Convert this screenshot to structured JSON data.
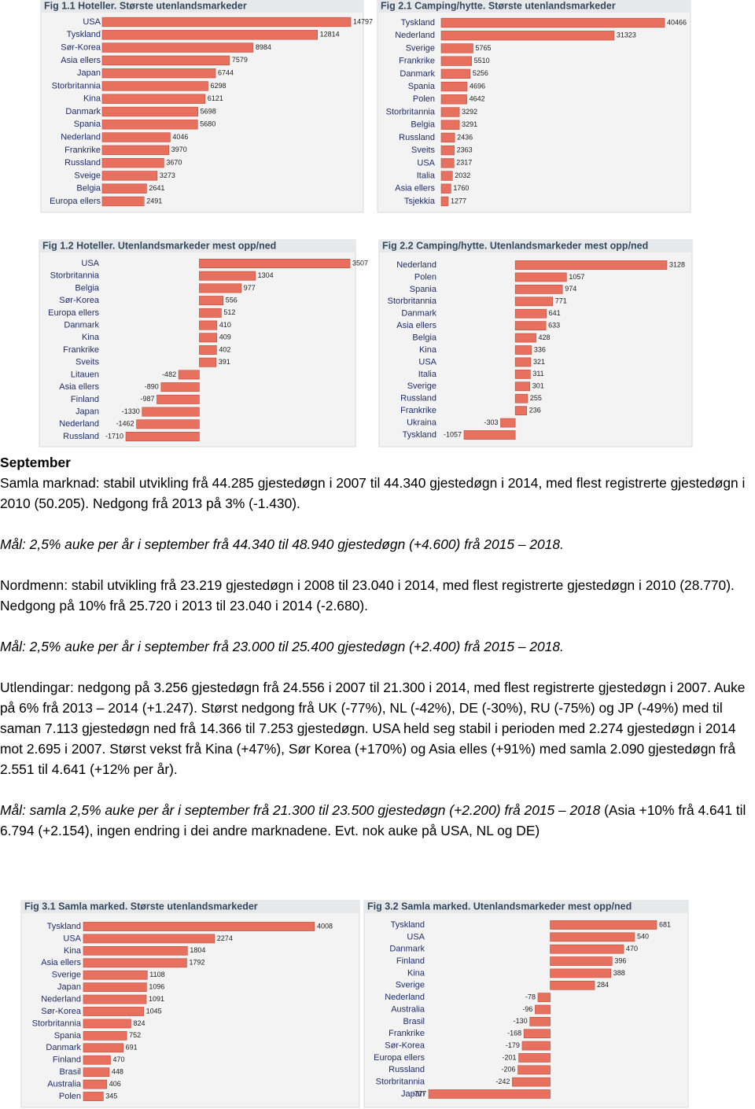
{
  "chart_data": [
    {
      "type": "bar",
      "title": "Fig 1.1 Hoteller. Største utenlandsmarkeder",
      "color": "#e8705f",
      "categories": [
        "USA",
        "Tyskland",
        "Sør-Korea",
        "Asia ellers",
        "Japan",
        "Storbritannia",
        "Kina",
        "Danmark",
        "Spania",
        "Nederland",
        "Frankrike",
        "Russland",
        "Sveige",
        "Belgia",
        "Europa ellers"
      ],
      "values": [
        14797,
        12814,
        8984,
        7579,
        6744,
        6298,
        6121,
        5698,
        5680,
        4046,
        3970,
        3670,
        3273,
        2641,
        2491
      ]
    },
    {
      "type": "bar",
      "title": "Fig 2.1 Camping/hytte. Største utenlandsmarkeder",
      "color": "#e8705f",
      "categories": [
        "Tyskland",
        "Nederland",
        "Sverige",
        "Frankrike",
        "Danmark",
        "Spania",
        "Polen",
        "Storbritannia",
        "Belgia",
        "Russland",
        "Sveits",
        "USA",
        "Italia",
        "Asia ellers",
        "Tsjekkia"
      ],
      "values": [
        40466,
        31323,
        5765,
        5510,
        5256,
        4696,
        4642,
        3292,
        3291,
        2436,
        2363,
        2317,
        2032,
        1760,
        1277
      ]
    },
    {
      "type": "bar",
      "title": "Fig 1.2 Hoteller. Utenlandsmarkeder mest opp/ned",
      "color": "#e8705f",
      "categories": [
        "USA",
        "Storbritannia",
        "Belgia",
        "Sør-Korea",
        "Europa ellers",
        "Danmark",
        "Kina",
        "Frankrike",
        "Sveits",
        "Litauen",
        "Asia ellers",
        "Finland",
        "Japan",
        "Nederland",
        "Russland"
      ],
      "values": [
        3507,
        1304,
        977,
        556,
        512,
        410,
        409,
        402,
        391,
        -482,
        -890,
        -987,
        -1330,
        -1462,
        -1710
      ]
    },
    {
      "type": "bar",
      "title": "Fig 2.2 Camping/hytte. Utenlandsmarkeder mest opp/ned",
      "color": "#e8705f",
      "categories": [
        "Nederland",
        "Polen",
        "Spania",
        "Storbritannia",
        "Danmark",
        "Asia ellers",
        "Belgia",
        "Kina",
        "USA",
        "Italia",
        "Sverige",
        "Russland",
        "Frankrike",
        "Ukraina",
        "Tyskland"
      ],
      "values": [
        3128,
        1057,
        974,
        771,
        641,
        633,
        428,
        336,
        321,
        311,
        301,
        255,
        236,
        -303,
        -1057
      ]
    },
    {
      "type": "bar",
      "title": "Fig 3.1 Samla marked. Største utenlandsmarkeder",
      "color": "#e8705f",
      "categories": [
        "Tyskland",
        "USA",
        "Kina",
        "Asia ellers",
        "Sverige",
        "Japan",
        "Nederland",
        "Sør-Korea",
        "Storbritannia",
        "Spania",
        "Danmark",
        "Finland",
        "Brasil",
        "Australia",
        "Polen"
      ],
      "values": [
        4008,
        2274,
        1804,
        1792,
        1108,
        1096,
        1091,
        1045,
        824,
        752,
        691,
        470,
        448,
        406,
        345
      ]
    },
    {
      "type": "bar",
      "title": "Fig 3.2 Samla marked. Utenlandsmarkeder mest opp/ned",
      "color": "#e8705f",
      "categories": [
        "Tyskland",
        "USA",
        "Danmark",
        "Finland",
        "Kina",
        "Sverige",
        "Nederland",
        "Australia",
        "Brasil",
        "Frankrike",
        "Sør-Korea",
        "Europa ellers",
        "Russland",
        "Storbritannia",
        "Japan"
      ],
      "values": [
        681,
        540,
        470,
        396,
        388,
        284,
        -78,
        -96,
        -130,
        -168,
        -179,
        -201,
        -206,
        -242,
        -777
      ]
    }
  ],
  "text": {
    "heading": "September",
    "paragraphs": [
      [
        "Samla marknad: stabil utvikling frå 44.285 gjestedøgn i 2007 til 44.340 gjestedøgn i 2014, med flest registrerte gjestedøgn i 2010 (50.205). Nedgong frå 2013 på 3% (-1.430)."
      ],
      [
        "Mål: 2,5% auke per år i september frå 44.340 til 48.940 gjestedøgn (+4.600) frå 2015 – 2018."
      ],
      [
        "Nordmenn: stabil utvikling frå 23.219 gjestedøgn i 2008 til 23.040 i 2014, med flest registrerte gjestedøgn i 2010 (28.770). Nedgong på 10% frå 25.720 i 2013 til 23.040 i 2014 (-2.680)."
      ],
      [
        "Mål: 2,5% auke per år i september frå 23.000 til 25.400 gjestedøgn (+2.400) frå 2015 – 2018."
      ],
      [
        "Utlendingar: nedgong på 3.256 gjestedøgn frå 24.556 i 2007 til 21.300 i 2014, med flest registrerte gjestedøgn i 2007. Auke på 6% frå 2013 – 2014 (+1.247). Størst nedgong frå UK (-77%), NL (-42%), DE (-30%), RU (-75%) og JP (-49%) med til saman 7.113 gjestedøgn ned frå 14.366 til 7.253 gjestedøgn. USA held seg stabil i perioden med 2.274 gjestedøgn i 2014 mot 2.695 i 2007. Størst vekst frå Kina (+47%), Sør Korea (+170%) og Asia elles (+91%) med samla 2.090 gjestedøgn frå 2.551 til 4.641 (+12% per år)."
      ],
      [
        "Mål: samla 2,5% auke per år i september frå 21.300 til 23.500  gjestedøgn (+2.200) frå 2015 – 2018",
        "(Asia +10% frå 4.641 til 6.794 (+2.154), ingen endring i dei andre marknadene. Evt. nok auke på USA, NL og DE)"
      ]
    ]
  }
}
